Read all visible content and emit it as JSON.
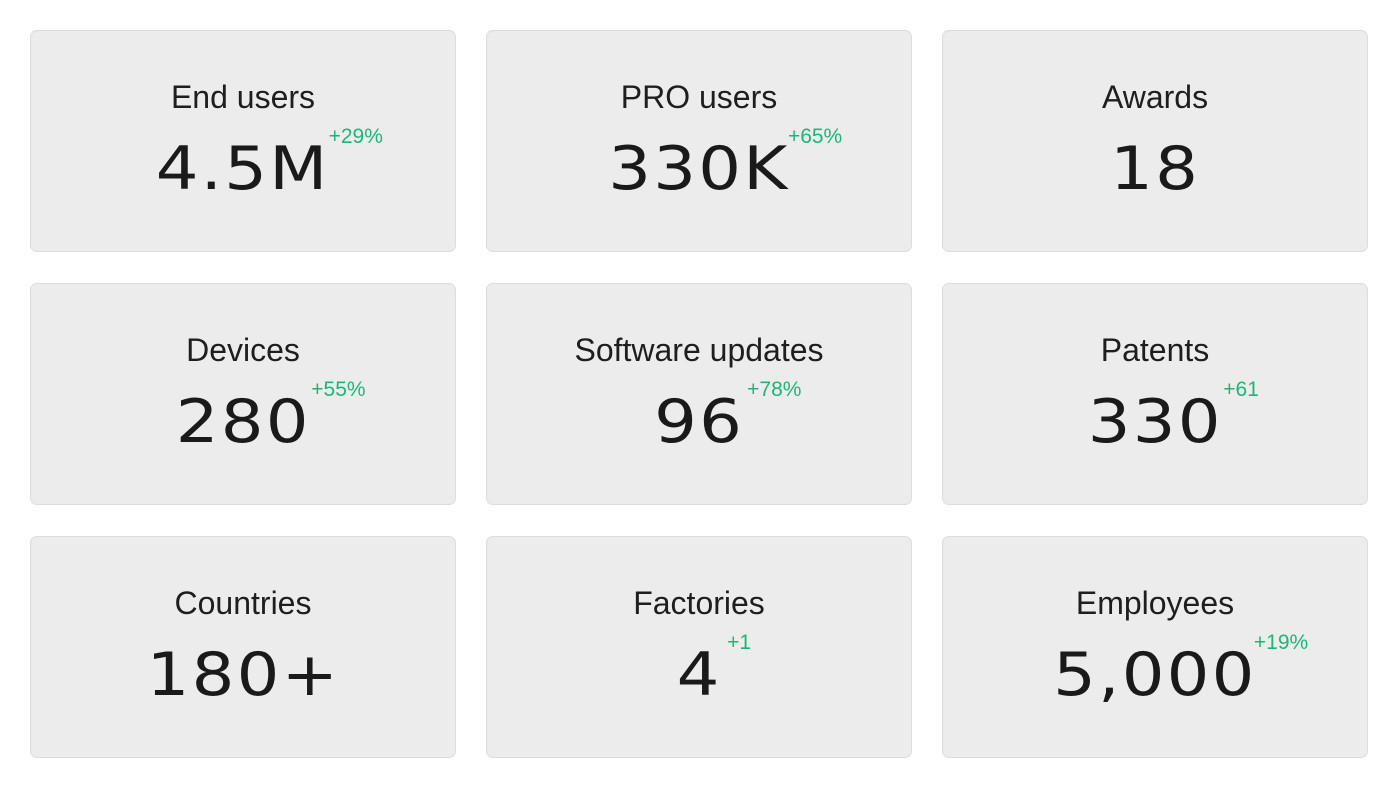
{
  "accent_color": "#1db67a",
  "cards": [
    {
      "label": "End users",
      "value": "4.5M",
      "delta": "+29%"
    },
    {
      "label": "PRO users",
      "value": "330K",
      "delta": "+65%"
    },
    {
      "label": "Awards",
      "value": "18",
      "delta": ""
    },
    {
      "label": "Devices",
      "value": "280",
      "delta": "+55%"
    },
    {
      "label": "Software updates",
      "value": "96",
      "delta": "+78%"
    },
    {
      "label": "Patents",
      "value": "330",
      "delta": "+61"
    },
    {
      "label": "Countries",
      "value": "180+",
      "delta": ""
    },
    {
      "label": "Factories",
      "value": "4",
      "delta": "+1"
    },
    {
      "label": "Employees",
      "value": "5,000",
      "delta": "+19%"
    }
  ]
}
